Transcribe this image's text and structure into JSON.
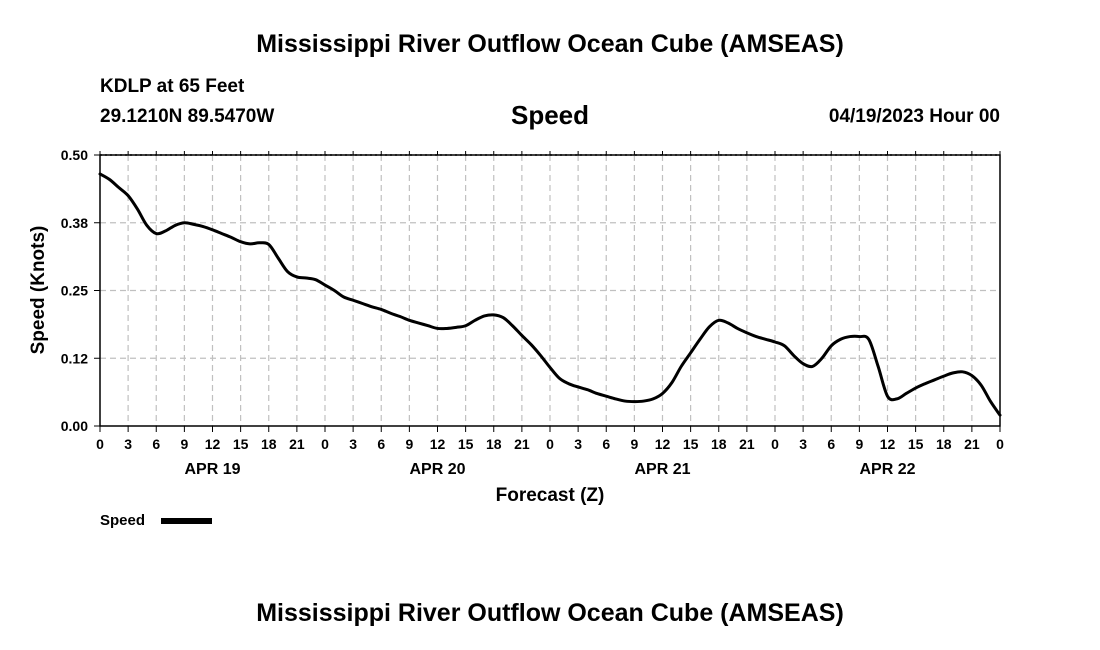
{
  "header": {
    "title": "Mississippi River Outflow Ocean Cube (AMSEAS)",
    "station": "KDLP at 65 Feet",
    "coords": "29.1210N  89.5470W",
    "variable": "Speed",
    "datetime": "04/19/2023 Hour 00"
  },
  "footer": {
    "title": "Mississippi River Outflow Ocean Cube (AMSEAS)"
  },
  "colors": {
    "line": "#000000",
    "grid": "#c0c0c0"
  },
  "chart_data": {
    "type": "line",
    "title": "Speed",
    "xlabel": "Forecast (Z)",
    "ylabel": "Speed (Knots)",
    "xlim": [
      0,
      96
    ],
    "ylim": [
      0,
      0.5
    ],
    "yticks": [
      "0.00",
      "0.12",
      "0.25",
      "0.38",
      "0.50"
    ],
    "ytick_values": [
      0,
      0.125,
      0.25,
      0.375,
      0.5
    ],
    "xtick_labels": [
      "0",
      "3",
      "6",
      "9",
      "12",
      "15",
      "18",
      "21",
      "0",
      "3",
      "6",
      "9",
      "12",
      "15",
      "18",
      "21",
      "0",
      "3",
      "6",
      "9",
      "12",
      "15",
      "18",
      "21",
      "0",
      "3",
      "6",
      "9",
      "12",
      "15",
      "18",
      "21",
      "0"
    ],
    "day_labels": [
      {
        "label": "APR 19",
        "hour": 12
      },
      {
        "label": "APR 20",
        "hour": 36
      },
      {
        "label": "APR 21",
        "hour": 60
      },
      {
        "label": "APR 22",
        "hour": 84
      }
    ],
    "grid": true,
    "legend": "bottom-left",
    "series": [
      {
        "name": "Speed",
        "x": [
          0,
          1,
          2,
          3,
          4,
          5,
          6,
          7,
          8,
          9,
          10,
          11,
          12,
          13,
          14,
          15,
          16,
          17,
          18,
          19,
          20,
          21,
          22,
          23,
          24,
          25,
          26,
          27,
          28,
          29,
          30,
          31,
          32,
          33,
          34,
          35,
          36,
          37,
          38,
          39,
          40,
          41,
          42,
          43,
          44,
          45,
          46,
          47,
          48,
          49,
          50,
          51,
          52,
          53,
          54,
          55,
          56,
          57,
          58,
          59,
          60,
          61,
          62,
          63,
          64,
          65,
          66,
          67,
          68,
          69,
          70,
          71,
          72,
          73,
          74,
          75,
          76,
          77,
          78,
          79,
          80,
          81,
          82,
          83,
          84,
          85,
          86,
          87,
          88,
          89,
          90,
          91,
          92,
          93,
          94,
          95,
          96
        ],
        "values": [
          0.465,
          0.455,
          0.44,
          0.425,
          0.4,
          0.37,
          0.355,
          0.36,
          0.37,
          0.375,
          0.372,
          0.368,
          0.362,
          0.355,
          0.348,
          0.34,
          0.336,
          0.338,
          0.335,
          0.31,
          0.285,
          0.275,
          0.273,
          0.27,
          0.26,
          0.25,
          0.238,
          0.232,
          0.226,
          0.22,
          0.215,
          0.208,
          0.202,
          0.195,
          0.19,
          0.185,
          0.18,
          0.18,
          0.182,
          0.185,
          0.195,
          0.203,
          0.205,
          0.2,
          0.185,
          0.167,
          0.15,
          0.13,
          0.108,
          0.088,
          0.078,
          0.072,
          0.067,
          0.06,
          0.055,
          0.05,
          0.046,
          0.045,
          0.046,
          0.05,
          0.06,
          0.08,
          0.11,
          0.135,
          0.16,
          0.183,
          0.195,
          0.19,
          0.18,
          0.172,
          0.165,
          0.16,
          0.155,
          0.148,
          0.13,
          0.115,
          0.11,
          0.125,
          0.148,
          0.16,
          0.165,
          0.165,
          0.16,
          0.11,
          0.055,
          0.05,
          0.06,
          0.07,
          0.078,
          0.085,
          0.092,
          0.098,
          0.1,
          0.093,
          0.075,
          0.045,
          0.02
        ]
      }
    ]
  }
}
